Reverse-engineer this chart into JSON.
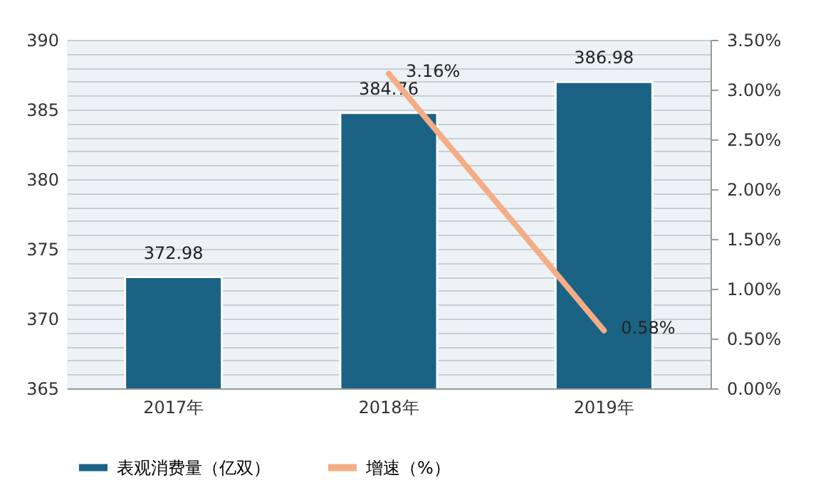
{
  "chart_data": {
    "type": "bar",
    "categories": [
      "2017年",
      "2018年",
      "2019年"
    ],
    "series": [
      {
        "name": "表观消费量（亿双）",
        "color": "#1b6385",
        "values": [
          372.98,
          384.76,
          386.98
        ],
        "value_labels": [
          "372.98",
          "384.76",
          "386.98"
        ]
      },
      {
        "name": "增速（%）",
        "type": "line",
        "axis": "y2",
        "color": "#f4ad85",
        "values": [
          null,
          3.16,
          0.58
        ],
        "value_labels": [
          null,
          "3.16%",
          "0.58%"
        ]
      }
    ],
    "ylim": [
      365,
      390
    ],
    "yticks": [
      365,
      {
        "value": 366,
        "label": null
      },
      {
        "value": 367,
        "label": null
      },
      {
        "value": 368,
        "label": null
      },
      {
        "value": 369,
        "label": null
      },
      370,
      {
        "value": 371,
        "label": null
      },
      {
        "value": 372,
        "label": null
      },
      {
        "value": 373,
        "label": null
      },
      {
        "value": 374,
        "label": null
      },
      375,
      {
        "value": 376,
        "label": null
      },
      {
        "value": 377,
        "label": null
      },
      {
        "value": 378,
        "label": null
      },
      {
        "value": 379,
        "label": null
      },
      380,
      {
        "value": 381,
        "label": null
      },
      {
        "value": 382,
        "label": null
      },
      {
        "value": 383,
        "label": null
      },
      {
        "value": 384,
        "label": null
      },
      385,
      {
        "value": 386,
        "label": null
      },
      {
        "value": 387,
        "label": null
      },
      {
        "value": 388,
        "label": null
      },
      {
        "value": 389,
        "label": null
      },
      390
    ],
    "y2lim": [
      0,
      3.5
    ],
    "y2ticks": [
      {
        "value": 0,
        "label": "0.00%"
      },
      {
        "value": 0.5,
        "label": "0.50%"
      },
      {
        "value": 1,
        "label": "1.00%"
      },
      {
        "value": 1.5,
        "label": "1.50%"
      },
      {
        "value": 2,
        "label": "2.00%"
      },
      {
        "value": 2.5,
        "label": "2.50%"
      },
      {
        "value": 3,
        "label": "3.00%"
      },
      {
        "value": 3.5,
        "label": "3.50%"
      }
    ],
    "grid": "y",
    "legend": "bottom"
  }
}
